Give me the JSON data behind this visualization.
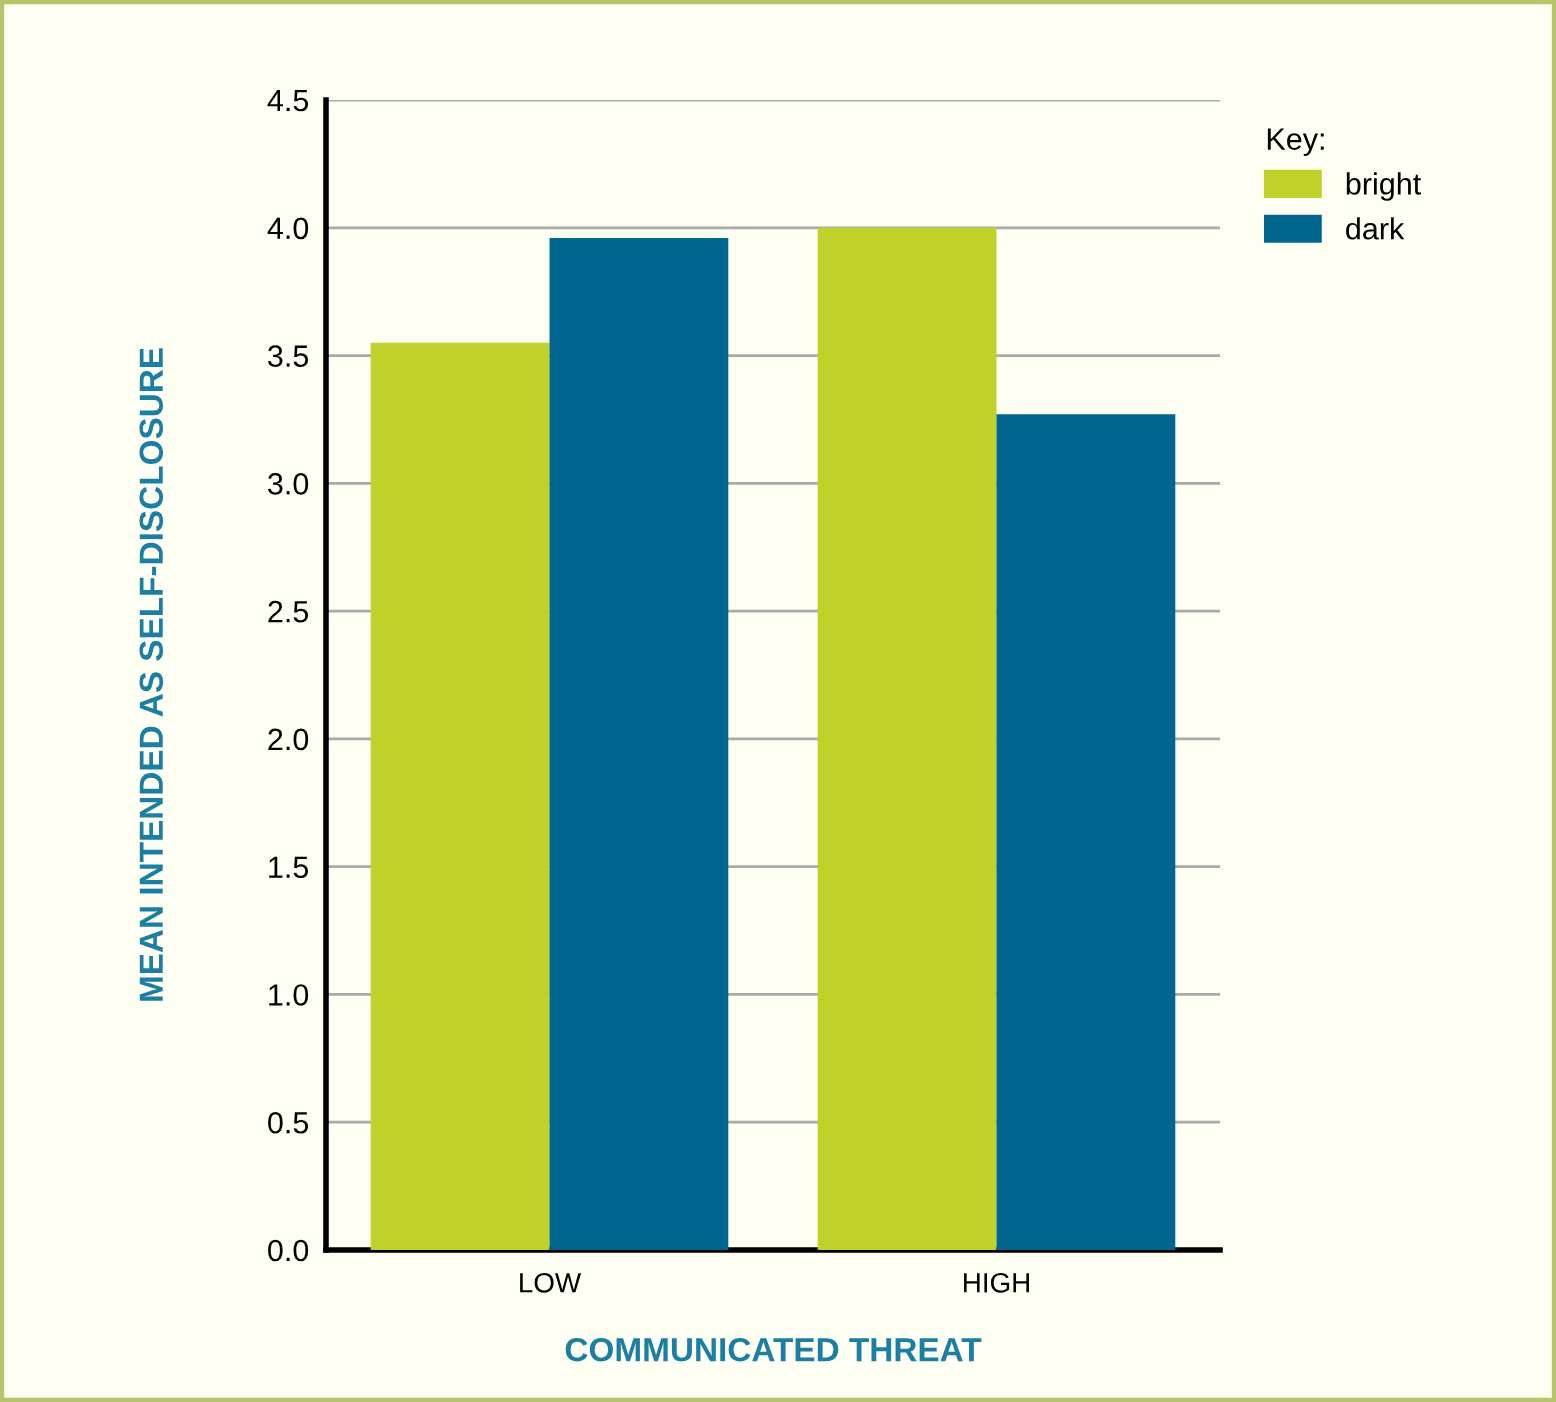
{
  "chart_data": {
    "type": "bar",
    "xlabel": "COMMUNICATED THREAT",
    "ylabel": "MEAN INTENDED AS SELF-DISCLOSURE",
    "legend_title": "Key:",
    "categories": [
      "LOW",
      "HIGH"
    ],
    "series": [
      {
        "name": "bright",
        "color": "#c0d22a",
        "values": [
          3.55,
          4.0
        ]
      },
      {
        "name": "dark",
        "color": "#00668f",
        "values": [
          3.96,
          3.27
        ]
      }
    ],
    "ylim": [
      0,
      4.5
    ],
    "yticks": [
      {
        "value": 0,
        "label": "0.0"
      },
      {
        "value": 0.5,
        "label": "0.5"
      },
      {
        "value": 1,
        "label": "1.0"
      },
      {
        "value": 1.5,
        "label": "1.5"
      },
      {
        "value": 2,
        "label": "2.0"
      },
      {
        "value": 2.5,
        "label": "2.5"
      },
      {
        "value": 3,
        "label": "3.0"
      },
      {
        "value": 3.5,
        "label": "3.5"
      },
      {
        "value": 4,
        "label": "4.0"
      },
      {
        "value": 4.5,
        "label": "4.5"
      }
    ],
    "grid": "y",
    "legend": "top right"
  }
}
